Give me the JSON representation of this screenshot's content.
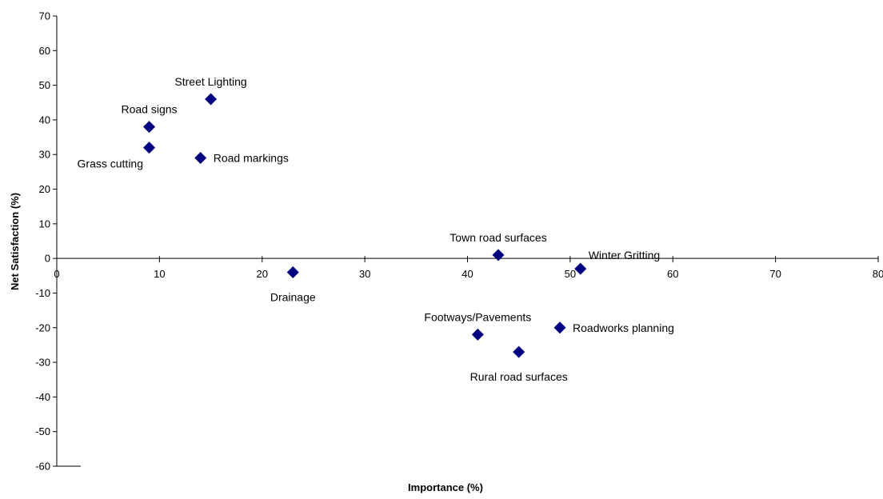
{
  "chart_data": {
    "type": "scatter",
    "title": "",
    "xlabel": "Importance (%)",
    "ylabel": "Net Satisfaction (%)",
    "xlim": [
      0,
      80
    ],
    "ylim": [
      -60,
      70
    ],
    "x_ticks": [
      0,
      10,
      20,
      30,
      40,
      50,
      60,
      70,
      80
    ],
    "x_tick_labels": [
      "0",
      "10",
      "20",
      "30",
      "40",
      "50",
      "60",
      "70",
      "80"
    ],
    "y_ticks": [
      70,
      60,
      50,
      40,
      30,
      20,
      10,
      0,
      -10,
      -20,
      -30,
      -40,
      -50,
      -60
    ],
    "y_tick_labels": [
      "70",
      "60",
      "50",
      "40",
      "30",
      "20",
      "10",
      "0",
      "-10",
      "-20",
      "-30",
      "-40",
      "-50",
      "-60"
    ],
    "grid": false,
    "legend": "none",
    "marker": "diamond",
    "marker_color": "#000080",
    "points": [
      {
        "label": "Street Lighting",
        "x": 15,
        "y": 46,
        "label_pos": "above"
      },
      {
        "label": "Road signs",
        "x": 9,
        "y": 38,
        "label_pos": "above"
      },
      {
        "label": "Grass cutting",
        "x": 9,
        "y": 32,
        "label_pos": "below-left"
      },
      {
        "label": "Road markings",
        "x": 14,
        "y": 29,
        "label_pos": "right"
      },
      {
        "label": "Town road surfaces",
        "x": 43,
        "y": 1,
        "label_pos": "above"
      },
      {
        "label": "Winter Gritting",
        "x": 51,
        "y": -3,
        "label_pos": "above-right"
      },
      {
        "label": "Drainage",
        "x": 23,
        "y": -4,
        "label_pos": "below"
      },
      {
        "label": "Footways/Pavements",
        "x": 41,
        "y": -22,
        "label_pos": "above"
      },
      {
        "label": "Roadworks planning",
        "x": 49,
        "y": -20,
        "label_pos": "right"
      },
      {
        "label": "Rural road surfaces",
        "x": 45,
        "y": -27,
        "label_pos": "below"
      }
    ]
  }
}
